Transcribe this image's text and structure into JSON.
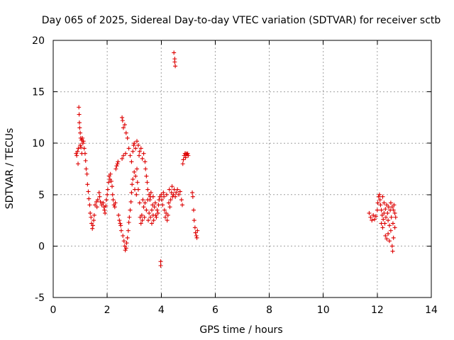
{
  "chart_data": {
    "type": "scatter",
    "title": "Day 065 of 2025, Sidereal Day-to-day VTEC variation (SDTVAR) for receiver sctb",
    "xlabel": "GPS time / hours",
    "ylabel": "SDTVAR / TECUs",
    "xlim": [
      0,
      14
    ],
    "ylim": [
      -5,
      20
    ],
    "xticks": [
      "0",
      "2",
      "4",
      "6",
      "8",
      "10",
      "12",
      "14"
    ],
    "yticks": [
      "-5",
      "0",
      "5",
      "10",
      "15",
      "20"
    ],
    "grid": true,
    "marker": "+",
    "color": "#dd0000",
    "series": [
      {
        "name": "SDTVAR",
        "points": [
          [
            0.85,
            9.0
          ],
          [
            0.87,
            8.8
          ],
          [
            0.9,
            9.2
          ],
          [
            0.92,
            8.0
          ],
          [
            0.93,
            9.5
          ],
          [
            0.95,
            13.5
          ],
          [
            0.96,
            12.8
          ],
          [
            0.97,
            12.0
          ],
          [
            0.98,
            11.5
          ],
          [
            1.0,
            11.0
          ],
          [
            1.0,
            9.8
          ],
          [
            1.02,
            10.5
          ],
          [
            1.03,
            9.6
          ],
          [
            1.05,
            10.3
          ],
          [
            1.06,
            9.0
          ],
          [
            1.08,
            10.5
          ],
          [
            1.1,
            10.0
          ],
          [
            1.12,
            10.2
          ],
          [
            1.15,
            9.5
          ],
          [
            1.18,
            9.0
          ],
          [
            1.2,
            8.3
          ],
          [
            1.22,
            7.5
          ],
          [
            1.25,
            7.0
          ],
          [
            1.27,
            6.0
          ],
          [
            1.3,
            5.3
          ],
          [
            1.32,
            4.6
          ],
          [
            1.35,
            4.0
          ],
          [
            1.37,
            3.2
          ],
          [
            1.4,
            2.8
          ],
          [
            1.42,
            2.2
          ],
          [
            1.45,
            1.7
          ],
          [
            1.47,
            2.0
          ],
          [
            1.5,
            2.5
          ],
          [
            1.52,
            3.0
          ],
          [
            1.55,
            4.0
          ],
          [
            1.6,
            4.3
          ],
          [
            1.62,
            3.8
          ],
          [
            1.65,
            4.5
          ],
          [
            1.7,
            5.2
          ],
          [
            1.72,
            4.8
          ],
          [
            1.75,
            4.3
          ],
          [
            1.8,
            4.0
          ],
          [
            1.85,
            4.2
          ],
          [
            1.88,
            3.8
          ],
          [
            1.9,
            3.5
          ],
          [
            1.92,
            3.2
          ],
          [
            1.95,
            3.9
          ],
          [
            1.97,
            4.5
          ],
          [
            2.0,
            5.0
          ],
          [
            2.02,
            5.5
          ],
          [
            2.05,
            6.2
          ],
          [
            2.07,
            6.8
          ],
          [
            2.1,
            6.5
          ],
          [
            2.12,
            7.0
          ],
          [
            2.15,
            6.3
          ],
          [
            2.18,
            5.8
          ],
          [
            2.2,
            5.0
          ],
          [
            2.22,
            4.5
          ],
          [
            2.25,
            4.0
          ],
          [
            2.28,
            3.8
          ],
          [
            2.3,
            4.2
          ],
          [
            2.32,
            7.5
          ],
          [
            2.35,
            7.8
          ],
          [
            2.38,
            8.0
          ],
          [
            2.4,
            8.2
          ],
          [
            2.42,
            3.0
          ],
          [
            2.45,
            2.5
          ],
          [
            2.48,
            2.2
          ],
          [
            2.5,
            2.0
          ],
          [
            2.52,
            1.5
          ],
          [
            2.55,
            8.5
          ],
          [
            2.55,
            12.5
          ],
          [
            2.57,
            12.2
          ],
          [
            2.58,
            1.0
          ],
          [
            2.6,
            11.5
          ],
          [
            2.6,
            8.8
          ],
          [
            2.62,
            0.5
          ],
          [
            2.65,
            11.8
          ],
          [
            2.65,
            0.0
          ],
          [
            2.67,
            -0.4
          ],
          [
            2.68,
            9.0
          ],
          [
            2.7,
            11.0
          ],
          [
            2.7,
            -0.2
          ],
          [
            2.72,
            0.3
          ],
          [
            2.75,
            10.5
          ],
          [
            2.75,
            0.8
          ],
          [
            2.78,
            1.5
          ],
          [
            2.8,
            9.5
          ],
          [
            2.8,
            2.3
          ],
          [
            2.82,
            2.8
          ],
          [
            2.85,
            8.8
          ],
          [
            2.85,
            3.5
          ],
          [
            2.88,
            4.3
          ],
          [
            2.9,
            8.2
          ],
          [
            2.9,
            5.2
          ],
          [
            2.92,
            6.0
          ],
          [
            2.95,
            9.2
          ],
          [
            2.95,
            6.5
          ],
          [
            2.98,
            9.8
          ],
          [
            3.0,
            7.2
          ],
          [
            3.0,
            10.0
          ],
          [
            3.02,
            5.5
          ],
          [
            3.05,
            9.5
          ],
          [
            3.05,
            6.8
          ],
          [
            3.08,
            5.0
          ],
          [
            3.1,
            10.2
          ],
          [
            3.1,
            7.5
          ],
          [
            3.12,
            6.2
          ],
          [
            3.15,
            9.8
          ],
          [
            3.15,
            5.5
          ],
          [
            3.18,
            8.8
          ],
          [
            3.2,
            9.2
          ],
          [
            3.2,
            4.2
          ],
          [
            3.22,
            2.8
          ],
          [
            3.25,
            9.5
          ],
          [
            3.25,
            2.2
          ],
          [
            3.28,
            3.0
          ],
          [
            3.3,
            8.5
          ],
          [
            3.3,
            2.5
          ],
          [
            3.32,
            4.5
          ],
          [
            3.35,
            9.0
          ],
          [
            3.35,
            3.8
          ],
          [
            3.38,
            2.8
          ],
          [
            3.4,
            8.2
          ],
          [
            3.4,
            4.2
          ],
          [
            3.42,
            7.5
          ],
          [
            3.45,
            6.8
          ],
          [
            3.45,
            3.5
          ],
          [
            3.48,
            6.2
          ],
          [
            3.5,
            5.5
          ],
          [
            3.5,
            4.5
          ],
          [
            3.52,
            2.5
          ],
          [
            3.55,
            5.0
          ],
          [
            3.55,
            3.2
          ],
          [
            3.58,
            4.5
          ],
          [
            3.6,
            4.8
          ],
          [
            3.6,
            2.8
          ],
          [
            3.62,
            5.2
          ],
          [
            3.65,
            3.5
          ],
          [
            3.65,
            2.2
          ],
          [
            3.68,
            4.0
          ],
          [
            3.7,
            4.8
          ],
          [
            3.7,
            3.0
          ],
          [
            3.72,
            2.5
          ],
          [
            3.75,
            3.8
          ],
          [
            3.78,
            4.2
          ],
          [
            3.8,
            3.0
          ],
          [
            3.82,
            2.8
          ],
          [
            3.85,
            3.5
          ],
          [
            3.88,
            3.2
          ],
          [
            3.9,
            4.0
          ],
          [
            3.92,
            4.5
          ],
          [
            3.95,
            4.8
          ],
          [
            3.98,
            -1.5
          ],
          [
            3.98,
            -1.9
          ],
          [
            4.0,
            5.0
          ],
          [
            4.02,
            4.5
          ],
          [
            4.05,
            4.0
          ],
          [
            4.08,
            5.2
          ],
          [
            4.1,
            4.8
          ],
          [
            4.12,
            3.5
          ],
          [
            4.15,
            2.8
          ],
          [
            4.18,
            3.2
          ],
          [
            4.2,
            5.0
          ],
          [
            4.22,
            2.5
          ],
          [
            4.25,
            3.0
          ],
          [
            4.28,
            4.2
          ],
          [
            4.3,
            5.5
          ],
          [
            4.32,
            3.8
          ],
          [
            4.35,
            4.5
          ],
          [
            4.38,
            5.2
          ],
          [
            4.4,
            5.8
          ],
          [
            4.42,
            4.8
          ],
          [
            4.45,
            5.0
          ],
          [
            4.47,
            18.8
          ],
          [
            4.48,
            5.5
          ],
          [
            4.5,
            18.2
          ],
          [
            4.5,
            17.9
          ],
          [
            4.52,
            17.5
          ],
          [
            4.52,
            4.8
          ],
          [
            4.55,
            5.2
          ],
          [
            4.6,
            5.5
          ],
          [
            4.65,
            5.0
          ],
          [
            4.7,
            5.3
          ],
          [
            4.75,
            4.5
          ],
          [
            4.78,
            4.0
          ],
          [
            4.8,
            8.0
          ],
          [
            4.82,
            8.4
          ],
          [
            4.85,
            8.8
          ],
          [
            4.88,
            9.0
          ],
          [
            4.9,
            8.6
          ],
          [
            4.92,
            9.0
          ],
          [
            4.95,
            8.9
          ],
          [
            4.98,
            9.0
          ],
          [
            5.0,
            8.8
          ],
          [
            5.15,
            5.2
          ],
          [
            5.17,
            4.8
          ],
          [
            5.2,
            3.5
          ],
          [
            5.22,
            2.5
          ],
          [
            5.25,
            1.8
          ],
          [
            5.27,
            1.3
          ],
          [
            5.3,
            1.0
          ],
          [
            5.32,
            0.8
          ],
          [
            5.34,
            1.5
          ],
          [
            11.7,
            3.2
          ],
          [
            11.75,
            2.8
          ],
          [
            11.8,
            2.5
          ],
          [
            11.85,
            3.0
          ],
          [
            11.9,
            2.6
          ],
          [
            11.95,
            2.9
          ],
          [
            12.0,
            3.5
          ],
          [
            12.02,
            4.2
          ],
          [
            12.05,
            4.8
          ],
          [
            12.08,
            5.0
          ],
          [
            12.1,
            4.5
          ],
          [
            12.12,
            4.0
          ],
          [
            12.15,
            3.5
          ],
          [
            12.15,
            2.2
          ],
          [
            12.18,
            3.0
          ],
          [
            12.2,
            4.8
          ],
          [
            12.2,
            1.8
          ],
          [
            12.22,
            2.6
          ],
          [
            12.25,
            4.2
          ],
          [
            12.25,
            3.2
          ],
          [
            12.28,
            2.2
          ],
          [
            12.3,
            3.6
          ],
          [
            12.3,
            1.0
          ],
          [
            12.32,
            2.8
          ],
          [
            12.35,
            4.0
          ],
          [
            12.35,
            0.7
          ],
          [
            12.38,
            3.2
          ],
          [
            12.4,
            2.5
          ],
          [
            12.4,
            1.2
          ],
          [
            12.42,
            3.8
          ],
          [
            12.45,
            2.0
          ],
          [
            12.45,
            0.5
          ],
          [
            12.48,
            3.5
          ],
          [
            12.5,
            4.2
          ],
          [
            12.5,
            1.5
          ],
          [
            12.52,
            2.8
          ],
          [
            12.55,
            3.8
          ],
          [
            12.55,
            0.0
          ],
          [
            12.57,
            -0.5
          ],
          [
            12.58,
            2.2
          ],
          [
            12.6,
            3.5
          ],
          [
            12.6,
            0.8
          ],
          [
            12.62,
            4.0
          ],
          [
            12.65,
            3.2
          ],
          [
            12.65,
            1.8
          ],
          [
            12.68,
            2.8
          ]
        ]
      }
    ]
  }
}
